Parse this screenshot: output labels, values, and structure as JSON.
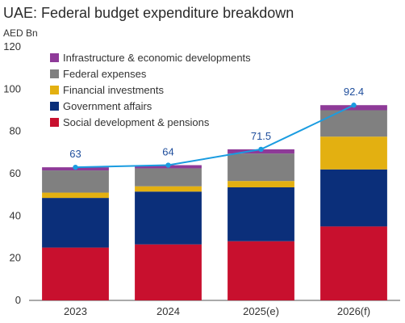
{
  "title": "UAE: Federal budget expenditure breakdown",
  "unit_label": "AED Bn",
  "chart_data": {
    "type": "bar",
    "stacked": true,
    "categories": [
      "2023",
      "2024",
      "2025(e)",
      "2026(f)"
    ],
    "ylim": [
      0,
      120
    ],
    "yticks": [
      0,
      20,
      40,
      60,
      80,
      100,
      120
    ],
    "series": [
      {
        "name": "Social development & pensions",
        "color": "#c8102e",
        "values": [
          25,
          26.5,
          28,
          35
        ]
      },
      {
        "name": "Government affairs",
        "color": "#0b2f7a",
        "values": [
          23.5,
          25,
          25.5,
          27
        ]
      },
      {
        "name": "Financial investments",
        "color": "#e3b011",
        "values": [
          2.5,
          2.5,
          3,
          15.5
        ]
      },
      {
        "name": "Federal expenses",
        "color": "#808080",
        "values": [
          10.5,
          8.5,
          13,
          12.5
        ]
      },
      {
        "name": "Infrastructure & economic developments",
        "color": "#8e3a98",
        "values": [
          1.5,
          1.5,
          2,
          2.4
        ]
      }
    ],
    "totals": {
      "name": "Total",
      "color": "#1a9ce0",
      "values": [
        63,
        64,
        71.5,
        92.4
      ],
      "labels": [
        "63",
        "64",
        "71.5",
        "92.4"
      ]
    },
    "legend": {
      "position": "top-left",
      "order": [
        "Infrastructure & economic developments",
        "Federal expenses",
        "Financial investments",
        "Government affairs",
        "Social development & pensions"
      ]
    },
    "grid": false
  }
}
